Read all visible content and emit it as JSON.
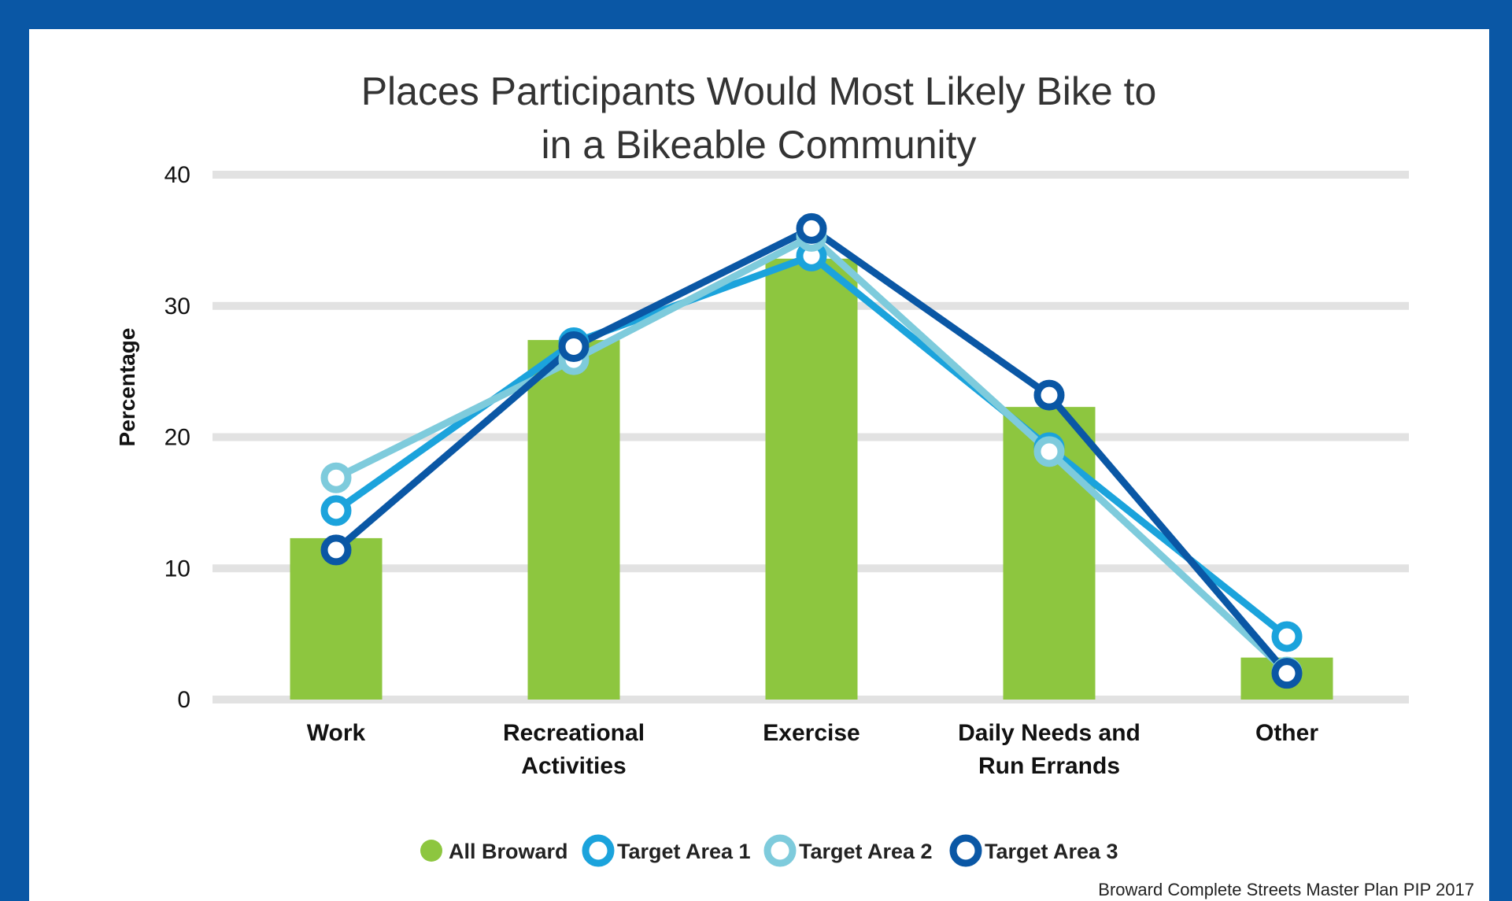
{
  "chart_data": {
    "type": "bar",
    "title_lines": [
      "Places Participants Would Most Likely Bike to",
      "in a Bikeable Community"
    ],
    "ylabel": "Percentage",
    "xlabel": "",
    "ylim": [
      0,
      40
    ],
    "yticks": [
      "0",
      "10",
      "20",
      "30",
      "40"
    ],
    "grid": true,
    "legend_position": "bottom",
    "categories": [
      [
        "Work"
      ],
      [
        "Recreational",
        "Activities"
      ],
      [
        "Exercise"
      ],
      [
        "Daily Needs and",
        "Run Errands"
      ],
      [
        "Other"
      ]
    ],
    "series": [
      {
        "name": "All Broward",
        "type": "bar",
        "color": "#8dc63f",
        "values": [
          12.3,
          27.4,
          33.6,
          22.3,
          3.2
        ]
      },
      {
        "name": "Target Area 1",
        "type": "line",
        "color": "#1ba3dc",
        "values": [
          14.4,
          27.2,
          33.8,
          19.2,
          4.8
        ]
      },
      {
        "name": "Target Area 2",
        "type": "line",
        "color": "#7ecbdc",
        "values": [
          16.9,
          25.9,
          35.3,
          18.9,
          2.1
        ]
      },
      {
        "name": "Target Area 3",
        "type": "line",
        "color": "#0a57a5",
        "values": [
          11.4,
          26.9,
          35.9,
          23.2,
          2.0
        ]
      }
    ],
    "source": "Broward Complete Streets Master Plan PIP 2017"
  },
  "colors": {
    "frame": "#0a57a5",
    "grid": "#e2e2e2"
  }
}
